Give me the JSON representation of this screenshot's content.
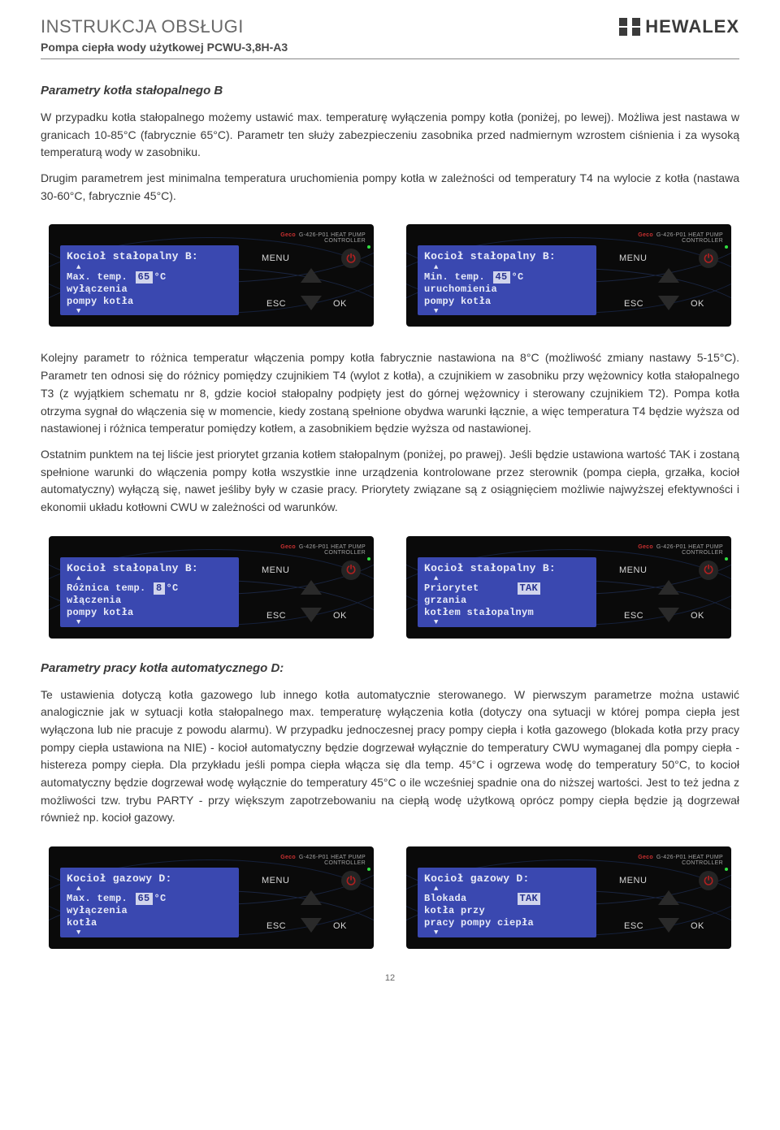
{
  "header": {
    "title": "INSTRUKCJA OBSŁUGI",
    "subtitle": "Pompa ciepła wody użytkowej PCWU-3,8H-A3",
    "brand": "HEWALEX"
  },
  "section1": {
    "title": "Parametry kotła stałopalnego B",
    "para1": "W przypadku kotła stałopalnego możemy ustawić max. temperaturę wyłączenia pompy kotła (poniżej, po lewej). Możliwa jest nastawa w granicach 10-85°C (fabrycznie 65°C). Parametr ten służy zabezpieczeniu zasobnika przed nadmiernym wzrostem ciśnienia i za wysoką temperaturą wody w zasobniku.",
    "para2": "Drugim parametrem jest minimalna temperatura uruchomienia pompy kotła w zależności od temperatury T4 na wylocie z kotła (nastawa 30-60°C, fabrycznie 45°C)."
  },
  "controller": {
    "label_prefix": "Geco",
    "label": "G-426-P01 HEAT PUMP CONTROLLER",
    "menu": "MENU",
    "esc": "ESC",
    "ok": "OK"
  },
  "panels1": {
    "left": {
      "title": "Kocioł stałopalny B:",
      "line1a": "Max. temp.",
      "value": "65",
      "unit": "°C",
      "line2": "wyłączenia",
      "line3": "pompy kotła"
    },
    "right": {
      "title": "Kocioł stałopalny B:",
      "line1a": "Min. temp.",
      "value": "45",
      "unit": "°C",
      "line2": "uruchomienia",
      "line3": "pompy kotła"
    }
  },
  "section2": {
    "para1": "Kolejny parametr to różnica temperatur włączenia pompy kotła fabrycznie nastawiona na 8°C (możliwość zmiany nastawy 5-15°C). Parametr ten odnosi się do różnicy pomiędzy czujnikiem T4 (wylot z kotła), a czujnikiem w zasobniku przy wężownicy kotła stałopalnego T3 (z wyjątkiem schematu nr 8, gdzie kocioł stałopalny podpięty jest do górnej wężownicy i sterowany czujnikiem T2). Pompa kotła otrzyma sygnał do włączenia się w momencie, kiedy zostaną spełnione obydwa warunki łącznie, a więc temperatura T4 będzie wyższa od nastawionej i różnica temperatur pomiędzy kotłem, a zasobnikiem będzie wyższa od nastawionej.",
    "para2": "Ostatnim punktem na tej liście jest priorytet grzania kotłem stałopalnym (poniżej, po prawej). Jeśli będzie ustawiona wartość TAK i zostaną spełnione warunki do włączenia pompy kotła wszystkie inne urządzenia kontrolowane przez sterownik (pompa ciepła, grzałka, kocioł automatyczny) wyłączą się, nawet jeśliby były w czasie pracy. Priorytety związane są z osiągnięciem możliwie najwyższej efektywności i ekonomii układu kotłowni CWU w zależności od warunków."
  },
  "panels2": {
    "left": {
      "title": "Kocioł stałopalny B:",
      "line1a": "Różnica temp.",
      "value": "8",
      "unit": "°C",
      "line2": "włączenia",
      "line3": "pompy kotła"
    },
    "right": {
      "title": "Kocioł stałopalny B:",
      "line1": "Priorytet",
      "value": "TAK",
      "line2": "grzania",
      "line3": "kotłem stałopalnym"
    }
  },
  "section3": {
    "title": "Parametry pracy kotła automatycznego D:",
    "para1": "Te ustawienia dotyczą kotła gazowego lub innego kotła automatycznie sterowanego. W pierwszym parametrze można ustawić analogicznie jak w sytuacji kotła stałopalnego max. temperaturę wyłączenia kotła (dotyczy ona sytuacji w której pompa ciepła jest wyłączona lub nie pracuje z powodu alarmu). W przypadku jednoczesnej pracy pompy ciepła i kotła gazowego (blokada kotła przy pracy pompy ciepła ustawiona na NIE) - kocioł automatyczny będzie dogrzewał wyłącznie do temperatury CWU wymaganej dla pompy ciepła - histereza pompy ciepła. Dla przykładu jeśli pompa ciepła włącza się dla temp. 45°C i ogrzewa wodę do temperatury 50°C, to kocioł automatyczny będzie dogrzewał wodę wyłącznie do temperatury 45°C o ile wcześniej spadnie ona do niższej wartości. Jest to też jedna z możliwości tzw. trybu PARTY - przy większym zapotrzebowaniu na ciepłą wodę użytkową oprócz pompy ciepła będzie ją dogrzewał również np. kocioł gazowy."
  },
  "panels3": {
    "left": {
      "title": "Kocioł gazowy D:",
      "line1a": "Max. temp.",
      "value": "65",
      "unit": "°C",
      "line2": "wyłączenia",
      "line3": "kotła"
    },
    "right": {
      "title": "Kocioł gazowy D:",
      "line1": "Blokada",
      "value": "TAK",
      "line2": "kotła przy",
      "line3": "pracy pompy ciepła"
    }
  },
  "page_number": "12"
}
